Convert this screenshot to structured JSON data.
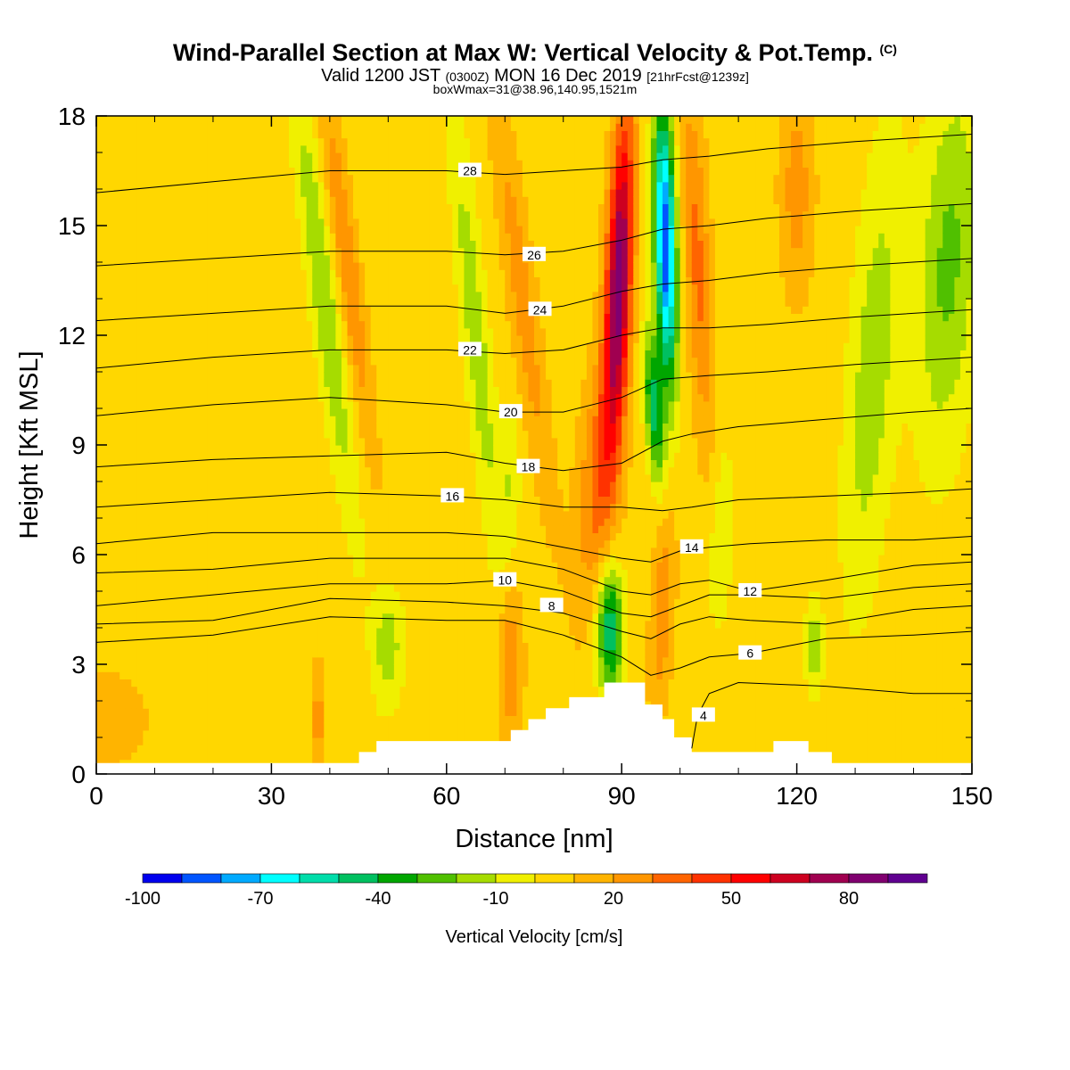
{
  "header": {
    "title": "Wind-Parallel Section at Max W: Vertical Velocity & Pot.Temp.",
    "copyright": "(C)",
    "valid_prefix": "Valid 1200 JST",
    "valid_utc": "(0300Z)",
    "valid_date": "MON 16 Dec 2019",
    "forecast": "[21hrFcst@1239z]",
    "boxmax": "boxWmax=31@38.96,140.95,1521m"
  },
  "chart_data": {
    "type": "heatmap",
    "xlabel": "Distance [nm]",
    "ylabel": "Height [Kft MSL]",
    "xlim": [
      0,
      150
    ],
    "ylim": [
      0,
      18
    ],
    "xticks": [
      0,
      30,
      60,
      90,
      120,
      150
    ],
    "yticks": [
      0,
      3,
      6,
      9,
      12,
      15,
      18
    ],
    "colorbar": {
      "label": "Vertical Velocity [cm/s]",
      "ticks": [
        -100,
        -70,
        -40,
        -10,
        20,
        50,
        80
      ],
      "levels": [
        -100,
        -90,
        -80,
        -70,
        -60,
        -50,
        -40,
        -30,
        -20,
        -10,
        0,
        10,
        20,
        30,
        40,
        50,
        60,
        70,
        80,
        90
      ],
      "colors": [
        "#0000ee",
        "#0055ff",
        "#00aaff",
        "#00ffff",
        "#00ddaa",
        "#00c060",
        "#00a600",
        "#50c000",
        "#a6dc00",
        "#f0f000",
        "#ffd700",
        "#ffb400",
        "#ff9600",
        "#ff6400",
        "#ff3200",
        "#ff0000",
        "#cd0020",
        "#a00050",
        "#800070",
        "#600090"
      ]
    },
    "background_velocity": 5,
    "velocity_features": [
      {
        "x": 39,
        "z": 13,
        "sx": 2.3,
        "sz": 6,
        "w": -25,
        "tilt": -0.8
      },
      {
        "x": 43,
        "z": 14,
        "sx": 2,
        "sz": 5,
        "w": 25,
        "tilt": -0.8
      },
      {
        "x": 38,
        "z": 1.5,
        "sx": 1.2,
        "sz": 1.5,
        "w": 20,
        "tilt": 0
      },
      {
        "x": 50,
        "z": 3.5,
        "sx": 2.5,
        "sz": 1.6,
        "w": -22,
        "tilt": 0
      },
      {
        "x": 65,
        "z": 12,
        "sx": 2.2,
        "sz": 6,
        "w": -22,
        "tilt": -0.6
      },
      {
        "x": 71,
        "z": 8,
        "sx": 1.5,
        "sz": 2,
        "w": -15,
        "tilt": 0
      },
      {
        "x": 73,
        "z": 13,
        "sx": 2.5,
        "sz": 6,
        "w": 20,
        "tilt": -0.8
      },
      {
        "x": 71,
        "z": 3,
        "sx": 2,
        "sz": 2,
        "w": 28,
        "tilt": 0
      },
      {
        "x": 89.5,
        "z": 13.5,
        "sx": 2.2,
        "sz": 4.5,
        "w": 80,
        "tilt": 0.25
      },
      {
        "x": 86,
        "z": 8,
        "sx": 3.5,
        "sz": 3.5,
        "w": 28,
        "tilt": 0.4
      },
      {
        "x": 97.5,
        "z": 14.5,
        "sx": 1.8,
        "sz": 3.8,
        "w": -95,
        "tilt": -0.15
      },
      {
        "x": 95.5,
        "z": 10,
        "sx": 1.5,
        "sz": 2,
        "w": -50,
        "tilt": -0.4
      },
      {
        "x": 103,
        "z": 14,
        "sx": 2.2,
        "sz": 5,
        "w": 28,
        "tilt": -0.3
      },
      {
        "x": 88,
        "z": 4,
        "sx": 2.2,
        "sz": 1.8,
        "w": -55,
        "tilt": 0
      },
      {
        "x": 97,
        "z": 4.5,
        "sx": 2,
        "sz": 3,
        "w": 22,
        "tilt": 0.3
      },
      {
        "x": 107,
        "z": 6.5,
        "sx": 2,
        "sz": 2.5,
        "w": -15,
        "tilt": 0.2
      },
      {
        "x": 123,
        "z": 3.5,
        "sx": 1.5,
        "sz": 1.2,
        "w": -22,
        "tilt": 0
      },
      {
        "x": 120,
        "z": 16,
        "sx": 3,
        "sz": 3,
        "w": 20,
        "tilt": 0
      },
      {
        "x": 133,
        "z": 11,
        "sx": 4,
        "sz": 6,
        "w": -22,
        "tilt": 0.4
      },
      {
        "x": 146,
        "z": 14,
        "sx": 5,
        "sz": 5,
        "w": -28,
        "tilt": 0.3
      },
      {
        "x": 2,
        "z": 1.5,
        "sx": 8,
        "sz": 1.5,
        "w": 10,
        "tilt": 0
      }
    ],
    "terrain": {
      "x": [
        0,
        45,
        45,
        48,
        48,
        71,
        71,
        74,
        74,
        77,
        77,
        81,
        81,
        87,
        87,
        94,
        94,
        97,
        97,
        99,
        99,
        102,
        102,
        116,
        116,
        122,
        122,
        126,
        126,
        150
      ],
      "height": [
        0.3,
        0.3,
        0.6,
        0.6,
        0.9,
        0.9,
        1.2,
        1.2,
        1.5,
        1.5,
        1.8,
        1.8,
        2.1,
        2.1,
        2.5,
        2.5,
        1.9,
        1.9,
        1.5,
        1.5,
        1.0,
        1.0,
        0.6,
        0.6,
        0.9,
        0.9,
        0.6,
        0.6,
        0.3,
        0.3
      ]
    },
    "potential_temperature_contours": [
      {
        "value": 4,
        "label_at": [
          104,
          1.6
        ],
        "points": [
          [
            102,
            0.7
          ],
          [
            103,
            1.6
          ],
          [
            105,
            2.2
          ],
          [
            110,
            2.5
          ],
          [
            125,
            2.4
          ],
          [
            140,
            2.2
          ],
          [
            150,
            2.2
          ]
        ]
      },
      {
        "value": 6,
        "label_at": [
          112,
          3.3
        ],
        "points": [
          [
            0,
            3.6
          ],
          [
            20,
            3.8
          ],
          [
            40,
            4.3
          ],
          [
            60,
            4.2
          ],
          [
            70,
            4.2
          ],
          [
            80,
            3.8
          ],
          [
            90,
            3.2
          ],
          [
            95,
            2.7
          ],
          [
            100,
            2.9
          ],
          [
            105,
            3.2
          ],
          [
            112,
            3.3
          ],
          [
            125,
            3.7
          ],
          [
            140,
            3.8
          ],
          [
            150,
            3.9
          ]
        ]
      },
      {
        "value": 8,
        "label_at": [
          78,
          4.6
        ],
        "points": [
          [
            0,
            4.1
          ],
          [
            20,
            4.2
          ],
          [
            40,
            4.8
          ],
          [
            60,
            4.7
          ],
          [
            70,
            4.6
          ],
          [
            80,
            4.4
          ],
          [
            90,
            3.9
          ],
          [
            95,
            3.7
          ],
          [
            100,
            4.1
          ],
          [
            105,
            4.3
          ],
          [
            112,
            4.2
          ],
          [
            125,
            4.1
          ],
          [
            140,
            4.5
          ],
          [
            150,
            4.6
          ]
        ]
      },
      {
        "value": 10,
        "label_at": [
          70,
          5.3
        ],
        "points": [
          [
            0,
            4.6
          ],
          [
            20,
            4.9
          ],
          [
            40,
            5.2
          ],
          [
            60,
            5.2
          ],
          [
            70,
            5.3
          ],
          [
            80,
            5.0
          ],
          [
            90,
            4.4
          ],
          [
            95,
            4.3
          ],
          [
            100,
            4.6
          ],
          [
            105,
            4.9
          ],
          [
            112,
            4.9
          ],
          [
            125,
            4.8
          ],
          [
            140,
            5.1
          ],
          [
            150,
            5.2
          ]
        ]
      },
      {
        "value": 12,
        "label_at": [
          112,
          5.0
        ],
        "points": [
          [
            0,
            5.5
          ],
          [
            20,
            5.6
          ],
          [
            40,
            5.9
          ],
          [
            60,
            5.9
          ],
          [
            70,
            5.9
          ],
          [
            80,
            5.6
          ],
          [
            90,
            5.0
          ],
          [
            95,
            4.9
          ],
          [
            100,
            5.2
          ],
          [
            105,
            5.3
          ],
          [
            112,
            5.0
          ],
          [
            125,
            5.3
          ],
          [
            140,
            5.7
          ],
          [
            150,
            5.8
          ]
        ]
      },
      {
        "value": 14,
        "label_at": [
          102,
          6.2
        ],
        "points": [
          [
            0,
            6.3
          ],
          [
            20,
            6.6
          ],
          [
            40,
            6.6
          ],
          [
            60,
            6.6
          ],
          [
            70,
            6.5
          ],
          [
            80,
            6.2
          ],
          [
            90,
            5.9
          ],
          [
            95,
            5.8
          ],
          [
            100,
            6.1
          ],
          [
            105,
            6.2
          ],
          [
            112,
            6.3
          ],
          [
            125,
            6.4
          ],
          [
            140,
            6.4
          ],
          [
            150,
            6.5
          ]
        ]
      },
      {
        "value": 16,
        "label_at": [
          61,
          7.6
        ],
        "points": [
          [
            0,
            7.3
          ],
          [
            20,
            7.5
          ],
          [
            40,
            7.7
          ],
          [
            60,
            7.6
          ],
          [
            70,
            7.5
          ],
          [
            80,
            7.3
          ],
          [
            90,
            7.3
          ],
          [
            97,
            7.2
          ],
          [
            102,
            7.3
          ],
          [
            110,
            7.5
          ],
          [
            125,
            7.6
          ],
          [
            140,
            7.7
          ],
          [
            150,
            7.8
          ]
        ]
      },
      {
        "value": 18,
        "label_at": [
          74,
          8.4
        ],
        "points": [
          [
            0,
            8.4
          ],
          [
            20,
            8.6
          ],
          [
            40,
            8.7
          ],
          [
            60,
            8.8
          ],
          [
            70,
            8.5
          ],
          [
            80,
            8.3
          ],
          [
            90,
            8.5
          ],
          [
            97,
            9.1
          ],
          [
            102,
            9.3
          ],
          [
            110,
            9.5
          ],
          [
            125,
            9.7
          ],
          [
            140,
            9.9
          ],
          [
            150,
            10.0
          ]
        ]
      },
      {
        "value": 20,
        "label_at": [
          71,
          9.9
        ],
        "points": [
          [
            0,
            9.8
          ],
          [
            20,
            10.1
          ],
          [
            40,
            10.3
          ],
          [
            60,
            10.1
          ],
          [
            70,
            9.9
          ],
          [
            80,
            9.9
          ],
          [
            90,
            10.3
          ],
          [
            97,
            10.8
          ],
          [
            105,
            10.9
          ],
          [
            115,
            11.0
          ],
          [
            130,
            11.2
          ],
          [
            150,
            11.4
          ]
        ]
      },
      {
        "value": 22,
        "label_at": [
          64,
          11.6
        ],
        "points": [
          [
            0,
            11.1
          ],
          [
            20,
            11.4
          ],
          [
            40,
            11.6
          ],
          [
            60,
            11.6
          ],
          [
            70,
            11.5
          ],
          [
            80,
            11.6
          ],
          [
            90,
            12.0
          ],
          [
            97,
            12.2
          ],
          [
            105,
            12.2
          ],
          [
            115,
            12.3
          ],
          [
            130,
            12.5
          ],
          [
            150,
            12.7
          ]
        ]
      },
      {
        "value": 24,
        "label_at": [
          76,
          12.7
        ],
        "points": [
          [
            0,
            12.4
          ],
          [
            20,
            12.6
          ],
          [
            40,
            12.8
          ],
          [
            60,
            12.8
          ],
          [
            70,
            12.6
          ],
          [
            80,
            12.8
          ],
          [
            90,
            13.2
          ],
          [
            97,
            13.4
          ],
          [
            105,
            13.5
          ],
          [
            115,
            13.7
          ],
          [
            130,
            13.9
          ],
          [
            150,
            14.1
          ]
        ]
      },
      {
        "value": 26,
        "label_at": [
          75,
          14.2
        ],
        "points": [
          [
            0,
            13.9
          ],
          [
            20,
            14.1
          ],
          [
            40,
            14.3
          ],
          [
            60,
            14.3
          ],
          [
            70,
            14.2
          ],
          [
            80,
            14.3
          ],
          [
            90,
            14.6
          ],
          [
            97,
            14.9
          ],
          [
            105,
            15.0
          ],
          [
            115,
            15.2
          ],
          [
            130,
            15.4
          ],
          [
            150,
            15.6
          ]
        ]
      },
      {
        "value": 28,
        "label_at": [
          64,
          16.5
        ],
        "points": [
          [
            0,
            15.9
          ],
          [
            20,
            16.2
          ],
          [
            40,
            16.5
          ],
          [
            60,
            16.5
          ],
          [
            70,
            16.4
          ],
          [
            80,
            16.5
          ],
          [
            90,
            16.6
          ],
          [
            97,
            16.8
          ],
          [
            105,
            16.9
          ],
          [
            115,
            17.1
          ],
          [
            130,
            17.3
          ],
          [
            150,
            17.5
          ]
        ]
      }
    ]
  }
}
